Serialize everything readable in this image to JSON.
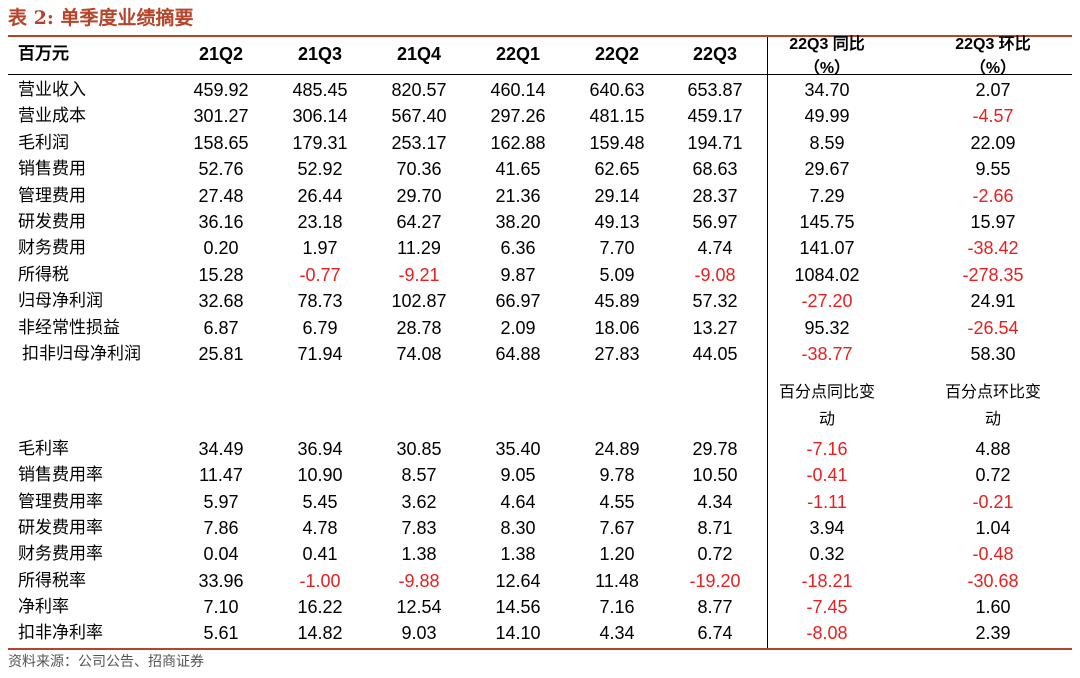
{
  "table_title": "表 2:  单季度业绩摘要",
  "header": {
    "unit": "百万元",
    "columns": [
      "21Q2",
      "21Q3",
      "21Q4",
      "22Q1",
      "22Q2",
      "22Q3"
    ],
    "yoy": [
      "22Q3 同比",
      "（%）"
    ],
    "qoq": [
      "22Q3 环比",
      "（%）"
    ]
  },
  "rows_main": [
    {
      "label": "营业收入",
      "values": [
        "459.92",
        "485.45",
        "820.57",
        "460.14",
        "640.63",
        "653.87",
        "34.70",
        "2.07"
      ]
    },
    {
      "label": "营业成本",
      "values": [
        "301.27",
        "306.14",
        "567.40",
        "297.26",
        "481.15",
        "459.17",
        "49.99",
        "-4.57"
      ]
    },
    {
      "label": "毛利润",
      "values": [
        "158.65",
        "179.31",
        "253.17",
        "162.88",
        "159.48",
        "194.71",
        "8.59",
        "22.09"
      ]
    },
    {
      "label": "销售费用",
      "values": [
        "52.76",
        "52.92",
        "70.36",
        "41.65",
        "62.65",
        "68.63",
        "29.67",
        "9.55"
      ]
    },
    {
      "label": "管理费用",
      "values": [
        "27.48",
        "26.44",
        "29.70",
        "21.36",
        "29.14",
        "28.37",
        "7.29",
        "-2.66"
      ]
    },
    {
      "label": "研发费用",
      "values": [
        "36.16",
        "23.18",
        "64.27",
        "38.20",
        "49.13",
        "56.97",
        "145.75",
        "15.97"
      ]
    },
    {
      "label": "财务费用",
      "values": [
        "0.20",
        "1.97",
        "11.29",
        "6.36",
        "7.70",
        "4.74",
        "141.07",
        "-38.42"
      ]
    },
    {
      "label": "所得税",
      "values": [
        "15.28",
        "-0.77",
        "-9.21",
        "9.87",
        "5.09",
        "-9.08",
        "1084.02",
        "-278.35"
      ]
    },
    {
      "label": "归母净利润",
      "values": [
        "32.68",
        "78.73",
        "102.87",
        "66.97",
        "45.89",
        "57.32",
        "-27.20",
        "24.91"
      ]
    },
    {
      "label": "非经常性损益",
      "values": [
        "6.87",
        "6.79",
        "28.78",
        "2.09",
        "18.06",
        "13.27",
        "95.32",
        "-26.54"
      ]
    },
    {
      "label": "扣非归母净利润",
      "values": [
        "25.81",
        "71.94",
        "74.08",
        "64.88",
        "27.83",
        "44.05",
        "-38.77",
        "58.30"
      ]
    }
  ],
  "subheader": {
    "yoy": [
      "百分点同比变",
      "动"
    ],
    "qoq": [
      "百分点环比变",
      "动"
    ]
  },
  "rows_ratio": [
    {
      "label": "毛利率",
      "values": [
        "34.49",
        "36.94",
        "30.85",
        "35.40",
        "24.89",
        "29.78",
        "-7.16",
        "4.88"
      ]
    },
    {
      "label": "销售费用率",
      "values": [
        "11.47",
        "10.90",
        "8.57",
        "9.05",
        "9.78",
        "10.50",
        "-0.41",
        "0.72"
      ]
    },
    {
      "label": "管理费用率",
      "values": [
        "5.97",
        "5.45",
        "3.62",
        "4.64",
        "4.55",
        "4.34",
        "-1.11",
        "-0.21"
      ]
    },
    {
      "label": "研发费用率",
      "values": [
        "7.86",
        "4.78",
        "7.83",
        "8.30",
        "7.67",
        "8.71",
        "3.94",
        "1.04"
      ]
    },
    {
      "label": "财务费用率",
      "values": [
        "0.04",
        "0.41",
        "1.38",
        "1.38",
        "1.20",
        "0.72",
        "0.32",
        "-0.48"
      ]
    },
    {
      "label": "所得税率",
      "values": [
        "33.96",
        "-1.00",
        "-9.88",
        "12.64",
        "11.48",
        "-19.20",
        "-18.21",
        "-30.68"
      ]
    },
    {
      "label": "净利率",
      "values": [
        "7.10",
        "16.22",
        "12.54",
        "14.56",
        "7.16",
        "8.77",
        "-7.45",
        "1.60"
      ]
    },
    {
      "label": "扣非净利率",
      "values": [
        "5.61",
        "14.82",
        "9.03",
        "14.10",
        "4.34",
        "6.74",
        "-8.08",
        "2.39"
      ]
    }
  ],
  "source": "资料来源：公司公告、招商证券",
  "colors": {
    "accent": "#b5442a",
    "negative": "#e8201f"
  }
}
